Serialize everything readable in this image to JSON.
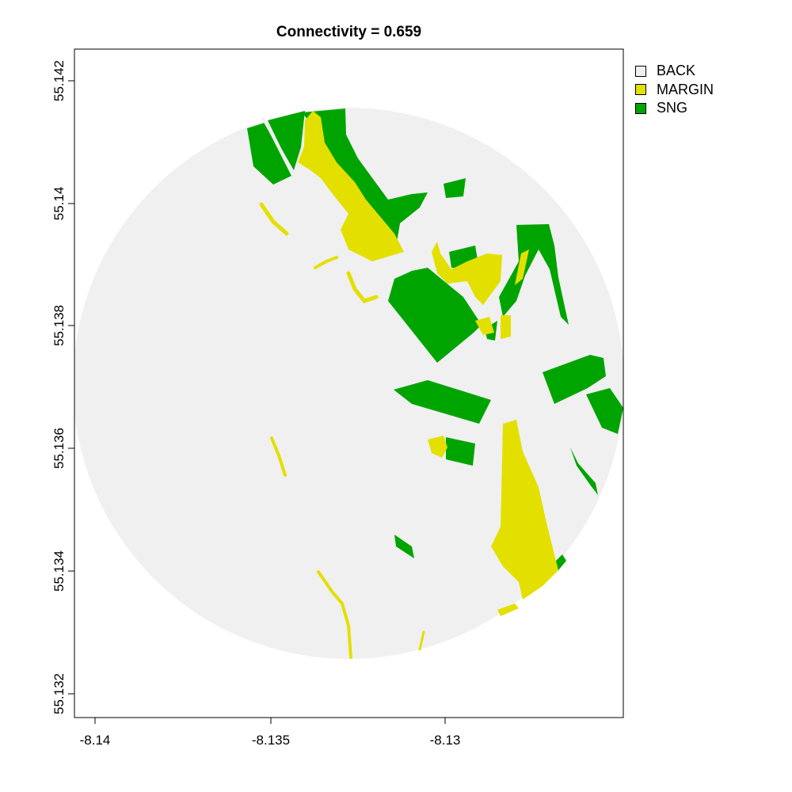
{
  "title": "Connectivity = 0.659",
  "legend": [
    {
      "label": "BACK",
      "color": "#f0f0f0"
    },
    {
      "label": "MARGIN",
      "color": "#e3e000"
    },
    {
      "label": "SNG",
      "color": "#00a400"
    }
  ],
  "x_ticks": [
    "-8.14",
    "-8.135",
    "-8.13"
  ],
  "y_ticks": [
    "55.142",
    "55.14",
    "55.138",
    "55.136",
    "55.134",
    "55.132"
  ],
  "colors": {
    "back": "#f0f0f0",
    "margin": "#e3e000",
    "sng": "#00a400"
  }
}
